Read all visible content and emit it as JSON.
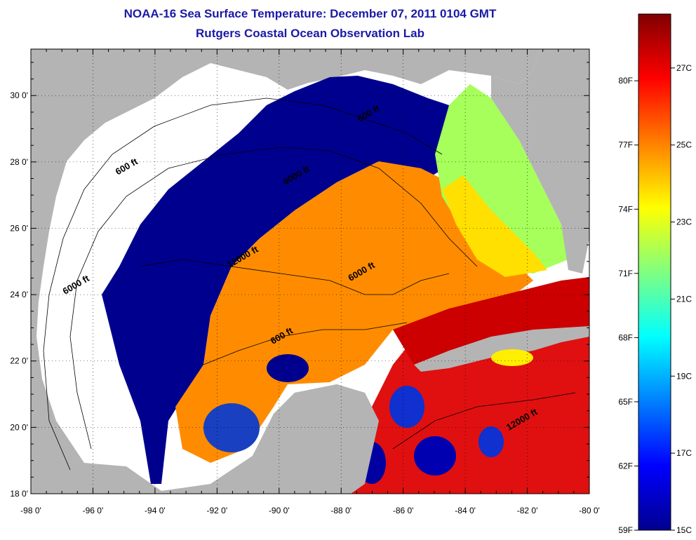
{
  "title": "NOAA-16 Sea Surface Temperature:  December 07, 2011 0104 GMT",
  "subtitle": "Rutgers Coastal Ocean Observation Lab",
  "map": {
    "lon_labels": [
      "-98 0'",
      "-96 0'",
      "-94 0'",
      "-92 0'",
      "-90 0'",
      "-88 0'",
      "-86 0'",
      "-84 0'",
      "-82 0'",
      "-80 0'"
    ],
    "lon_values": [
      -98,
      -96,
      -94,
      -92,
      -90,
      -88,
      -86,
      -84,
      -82,
      -80
    ],
    "lat_labels": [
      "18 0'",
      "20 0'",
      "22 0'",
      "24 0'",
      "26 0'",
      "28 0'",
      "30 0'"
    ],
    "lat_values": [
      18,
      20,
      22,
      24,
      26,
      28,
      30
    ],
    "lon_range": [
      -98,
      -80
    ],
    "lat_range": [
      18,
      31.4
    ],
    "land_color": "#b4b4b4",
    "contour_labels": [
      {
        "text": "600 ft",
        "lon": -95.2,
        "lat": 27.6
      },
      {
        "text": "600 ft",
        "lon": -87.4,
        "lat": 29.2
      },
      {
        "text": "6000 ft",
        "lon": -89.8,
        "lat": 27.3
      },
      {
        "text": "12000 ft",
        "lon": -91.6,
        "lat": 24.8
      },
      {
        "text": "6000 ft",
        "lon": -96.9,
        "lat": 24.0
      },
      {
        "text": "6000 ft",
        "lon": -87.7,
        "lat": 24.4
      },
      {
        "text": "600 ft",
        "lon": -90.2,
        "lat": 22.5
      },
      {
        "text": "12000 ft",
        "lon": -82.6,
        "lat": 19.9
      }
    ]
  },
  "colorbar": {
    "f_labels": [
      "80F",
      "77F",
      "74F",
      "71F",
      "68F",
      "65F",
      "62F",
      "59F"
    ],
    "f_values": [
      80,
      77,
      74,
      71,
      68,
      65,
      62,
      59
    ],
    "c_labels": [
      "27C",
      "25C",
      "23C",
      "21C",
      "19C",
      "17C",
      "15C"
    ],
    "c_values": [
      27,
      25,
      23,
      21,
      19,
      17,
      15
    ],
    "range_c": [
      15,
      28.4
    ],
    "colors": [
      "#00008f",
      "#0000ff",
      "#0080ff",
      "#00ffff",
      "#80ff80",
      "#ffff00",
      "#ff8000",
      "#ff0000",
      "#800000"
    ]
  }
}
